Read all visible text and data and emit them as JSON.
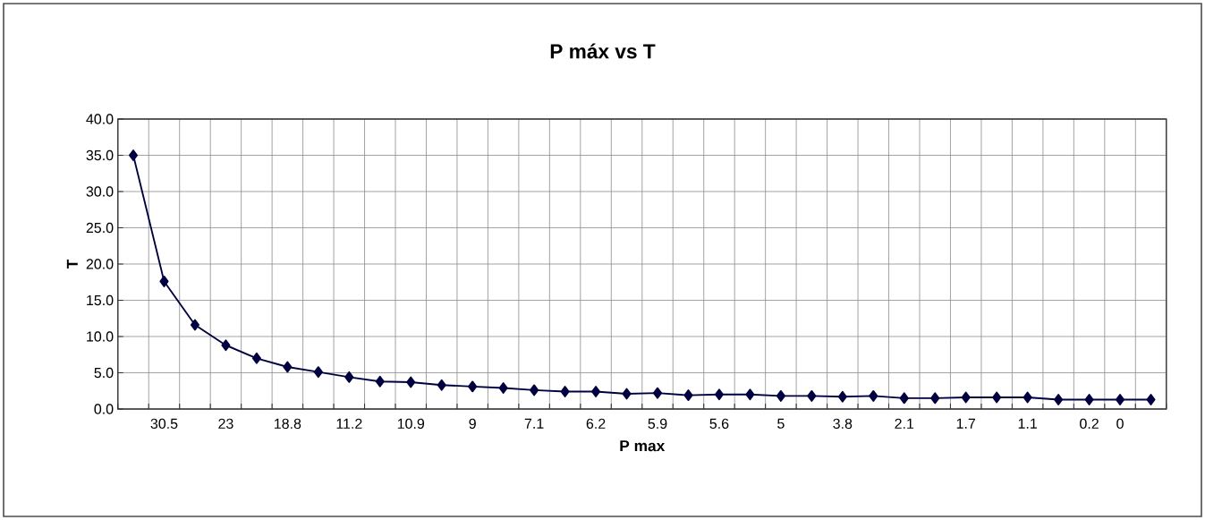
{
  "chart_data": {
    "type": "line",
    "title": "P máx vs T",
    "xlabel": "P max",
    "ylabel": "T",
    "categories": [
      null,
      "30.5",
      null,
      "23",
      null,
      "18.8",
      null,
      "11.2",
      null,
      "10.9",
      null,
      "9",
      null,
      "7.1",
      null,
      "6.2",
      null,
      "5.9",
      null,
      "5.6",
      null,
      "5",
      null,
      "3.8",
      null,
      "2.1",
      null,
      "1.7",
      null,
      "1.1",
      null,
      "0.2",
      "0",
      null
    ],
    "series": [
      {
        "color": "#000040",
        "values": [
          35.0,
          17.6,
          11.6,
          8.8,
          7.0,
          5.8,
          5.1,
          4.4,
          3.8,
          3.7,
          3.3,
          3.1,
          2.9,
          2.6,
          2.4,
          2.4,
          2.1,
          2.2,
          1.9,
          2.0,
          2.0,
          1.8,
          1.8,
          1.7,
          1.8,
          1.5,
          1.5,
          1.6,
          1.6,
          1.6,
          1.3,
          1.3,
          1.3,
          1.3
        ]
      }
    ],
    "ylim": [
      0,
      40
    ],
    "yticks": [
      {
        "value": 0,
        "label": "0.0"
      },
      {
        "value": 5,
        "label": "5.0"
      },
      {
        "value": 10,
        "label": "10.0"
      },
      {
        "value": 15,
        "label": "15.0"
      },
      {
        "value": 20,
        "label": "20.0"
      },
      {
        "value": 25,
        "label": "25.0"
      },
      {
        "value": 30,
        "label": "30.0"
      },
      {
        "value": 35,
        "label": "35.0"
      },
      {
        "value": 40,
        "label": "40.0"
      }
    ],
    "grid": true,
    "marker": "diamond",
    "line_style": "solid"
  }
}
